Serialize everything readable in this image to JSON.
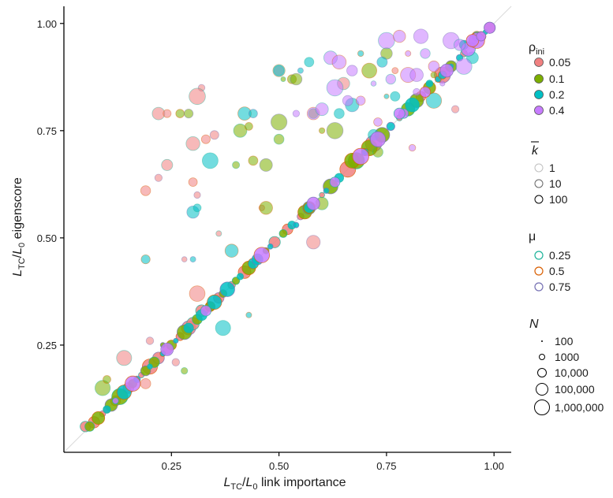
{
  "chart_data": {
    "type": "scatter",
    "xlabel": "L_TC/L_0 link importance",
    "ylabel": "L_TC/L_0 eigenscore",
    "xlim": [
      0.0,
      1.04
    ],
    "ylim": [
      0.0,
      1.04
    ],
    "x_ticks": [
      0.25,
      0.5,
      0.75,
      1.0
    ],
    "y_ticks": [
      0.25,
      0.5,
      0.75,
      1.0
    ],
    "x_tick_labels": [
      "0.25",
      "0.50",
      "0.75",
      "1.00"
    ],
    "y_tick_labels": [
      "0.25",
      "0.50",
      "0.75",
      "1.00"
    ],
    "reference_line": {
      "from": [
        0,
        0
      ],
      "to": [
        1.04,
        1.04
      ],
      "color": "#d9d9d9"
    },
    "grid": false,
    "legend_position": "right",
    "legends": {
      "rho_ini": {
        "title": "ρini",
        "items": [
          {
            "label": "0.05",
            "color": "#f08080"
          },
          {
            "label": "0.1",
            "color": "#7cae00"
          },
          {
            "label": "0.2",
            "color": "#00bfc4"
          },
          {
            "label": "0.4",
            "color": "#c77cff"
          }
        ]
      },
      "k_bar": {
        "title": "k",
        "items": [
          {
            "label": "1",
            "opacity": 0.25
          },
          {
            "label": "10",
            "opacity": 0.6
          },
          {
            "label": "100",
            "opacity": 1.0
          }
        ]
      },
      "mu": {
        "title": "μ",
        "items": [
          {
            "label": "0.25",
            "color": "#1db39a"
          },
          {
            "label": "0.5",
            "color": "#d95f02"
          },
          {
            "label": "0.75",
            "color": "#7570b3"
          }
        ]
      },
      "N": {
        "title": "N",
        "items": [
          {
            "label": "100",
            "size_level": 0
          },
          {
            "label": "1000",
            "size_level": 1
          },
          {
            "label": "10,000",
            "size_level": 2
          },
          {
            "label": "100,000",
            "size_level": 3
          },
          {
            "label": "1,000,000",
            "size_level": 4
          }
        ]
      }
    },
    "series": [
      {
        "rho": "0.05",
        "points": [
          [
            0.05,
            0.06
          ],
          [
            0.07,
            0.07
          ],
          [
            0.09,
            0.09
          ],
          [
            0.1,
            0.1
          ],
          [
            0.12,
            0.12
          ],
          [
            0.15,
            0.15
          ],
          [
            0.18,
            0.18
          ],
          [
            0.2,
            0.2
          ],
          [
            0.22,
            0.22
          ],
          [
            0.24,
            0.24
          ],
          [
            0.27,
            0.27
          ],
          [
            0.29,
            0.29
          ],
          [
            0.3,
            0.3
          ],
          [
            0.33,
            0.33
          ],
          [
            0.36,
            0.36
          ],
          [
            0.39,
            0.39
          ],
          [
            0.42,
            0.42
          ],
          [
            0.45,
            0.45
          ],
          [
            0.49,
            0.49
          ],
          [
            0.52,
            0.52
          ],
          [
            0.55,
            0.55
          ],
          [
            0.6,
            0.6
          ],
          [
            0.66,
            0.66
          ],
          [
            0.72,
            0.72
          ],
          [
            0.78,
            0.78
          ],
          [
            0.83,
            0.83
          ],
          [
            0.88,
            0.88
          ],
          [
            0.93,
            0.93
          ],
          [
            0.97,
            0.97
          ],
          [
            0.99,
            0.99
          ],
          [
            0.22,
            0.79
          ],
          [
            0.24,
            0.79
          ],
          [
            0.32,
            0.85
          ],
          [
            0.31,
            0.83
          ],
          [
            0.19,
            0.61
          ],
          [
            0.22,
            0.64
          ],
          [
            0.24,
            0.67
          ],
          [
            0.3,
            0.63
          ],
          [
            0.31,
            0.6
          ],
          [
            0.3,
            0.72
          ],
          [
            0.33,
            0.73
          ],
          [
            0.35,
            0.74
          ],
          [
            0.36,
            0.51
          ],
          [
            0.31,
            0.37
          ],
          [
            0.2,
            0.26
          ],
          [
            0.14,
            0.22
          ],
          [
            0.19,
            0.16
          ],
          [
            0.26,
            0.21
          ],
          [
            0.32,
            0.33
          ],
          [
            0.34,
            0.34
          ],
          [
            0.58,
            0.49
          ],
          [
            0.65,
            0.86
          ],
          [
            0.77,
            0.89
          ],
          [
            0.91,
            0.8
          ],
          [
            0.5,
            0.89
          ],
          [
            0.46,
            0.57
          ],
          [
            0.28,
            0.45
          ]
        ]
      },
      {
        "rho": "0.1",
        "points": [
          [
            0.06,
            0.06
          ],
          [
            0.08,
            0.08
          ],
          [
            0.11,
            0.11
          ],
          [
            0.13,
            0.13
          ],
          [
            0.16,
            0.16
          ],
          [
            0.19,
            0.19
          ],
          [
            0.21,
            0.21
          ],
          [
            0.25,
            0.25
          ],
          [
            0.28,
            0.28
          ],
          [
            0.31,
            0.31
          ],
          [
            0.34,
            0.34
          ],
          [
            0.37,
            0.37
          ],
          [
            0.4,
            0.4
          ],
          [
            0.43,
            0.43
          ],
          [
            0.47,
            0.47
          ],
          [
            0.51,
            0.51
          ],
          [
            0.56,
            0.56
          ],
          [
            0.62,
            0.62
          ],
          [
            0.68,
            0.68
          ],
          [
            0.71,
            0.71
          ],
          [
            0.74,
            0.74
          ],
          [
            0.8,
            0.8
          ],
          [
            0.85,
            0.85
          ],
          [
            0.9,
            0.9
          ],
          [
            0.95,
            0.95
          ],
          [
            0.27,
            0.79
          ],
          [
            0.29,
            0.79
          ],
          [
            0.4,
            0.67
          ],
          [
            0.44,
            0.68
          ],
          [
            0.47,
            0.67
          ],
          [
            0.41,
            0.75
          ],
          [
            0.43,
            0.76
          ],
          [
            0.5,
            0.77
          ],
          [
            0.51,
            0.87
          ],
          [
            0.53,
            0.87
          ],
          [
            0.54,
            0.87
          ],
          [
            0.58,
            0.79
          ],
          [
            0.6,
            0.75
          ],
          [
            0.63,
            0.75
          ],
          [
            0.5,
            0.73
          ],
          [
            0.71,
            0.89
          ],
          [
            0.75,
            0.93
          ],
          [
            0.73,
            0.7
          ],
          [
            0.86,
            0.88
          ],
          [
            0.82,
            0.82
          ],
          [
            0.09,
            0.15
          ],
          [
            0.1,
            0.17
          ],
          [
            0.23,
            0.25
          ],
          [
            0.28,
            0.19
          ],
          [
            0.47,
            0.57
          ],
          [
            0.57,
            0.57
          ],
          [
            0.6,
            0.58
          ],
          [
            0.67,
            0.68
          ]
        ]
      },
      {
        "rho": "0.2",
        "points": [
          [
            0.1,
            0.1
          ],
          [
            0.14,
            0.14
          ],
          [
            0.17,
            0.17
          ],
          [
            0.2,
            0.2
          ],
          [
            0.23,
            0.23
          ],
          [
            0.26,
            0.26
          ],
          [
            0.32,
            0.32
          ],
          [
            0.35,
            0.35
          ],
          [
            0.38,
            0.38
          ],
          [
            0.41,
            0.41
          ],
          [
            0.44,
            0.44
          ],
          [
            0.48,
            0.48
          ],
          [
            0.53,
            0.53
          ],
          [
            0.57,
            0.57
          ],
          [
            0.61,
            0.61
          ],
          [
            0.64,
            0.64
          ],
          [
            0.7,
            0.7
          ],
          [
            0.76,
            0.76
          ],
          [
            0.81,
            0.81
          ],
          [
            0.87,
            0.87
          ],
          [
            0.92,
            0.92
          ],
          [
            0.98,
            0.98
          ],
          [
            0.5,
            0.89
          ],
          [
            0.55,
            0.89
          ],
          [
            0.57,
            0.91
          ],
          [
            0.69,
            0.93
          ],
          [
            0.74,
            0.91
          ],
          [
            0.77,
            0.83
          ],
          [
            0.75,
            0.83
          ],
          [
            0.67,
            0.81
          ],
          [
            0.64,
            0.79
          ],
          [
            0.42,
            0.79
          ],
          [
            0.44,
            0.79
          ],
          [
            0.34,
            0.68
          ],
          [
            0.39,
            0.47
          ],
          [
            0.3,
            0.56
          ],
          [
            0.31,
            0.57
          ],
          [
            0.19,
            0.45
          ],
          [
            0.3,
            0.45
          ],
          [
            0.37,
            0.29
          ],
          [
            0.43,
            0.32
          ],
          [
            0.54,
            0.53
          ],
          [
            0.85,
            0.86
          ],
          [
            0.88,
            0.88
          ],
          [
            0.9,
            0.9
          ],
          [
            0.95,
            0.92
          ],
          [
            0.96,
            0.97
          ],
          [
            0.93,
            0.95
          ],
          [
            0.72,
            0.74
          ],
          [
            0.86,
            0.82
          ],
          [
            0.45,
            0.45
          ],
          [
            0.29,
            0.29
          ]
        ]
      },
      {
        "rho": "0.4",
        "points": [
          [
            0.12,
            0.12
          ],
          [
            0.16,
            0.16
          ],
          [
            0.24,
            0.24
          ],
          [
            0.33,
            0.33
          ],
          [
            0.46,
            0.46
          ],
          [
            0.58,
            0.58
          ],
          [
            0.63,
            0.63
          ],
          [
            0.69,
            0.69
          ],
          [
            0.73,
            0.73
          ],
          [
            0.79,
            0.79
          ],
          [
            0.84,
            0.84
          ],
          [
            0.89,
            0.89
          ],
          [
            0.94,
            0.94
          ],
          [
            0.96,
            0.96
          ],
          [
            0.99,
            0.99
          ],
          [
            0.75,
            0.96
          ],
          [
            0.78,
            0.97
          ],
          [
            0.83,
            0.97
          ],
          [
            0.84,
            0.93
          ],
          [
            0.8,
            0.93
          ],
          [
            0.9,
            0.96
          ],
          [
            0.92,
            0.95
          ],
          [
            0.95,
            0.96
          ],
          [
            0.97,
            0.97
          ],
          [
            0.62,
            0.92
          ],
          [
            0.64,
            0.91
          ],
          [
            0.67,
            0.89
          ],
          [
            0.76,
            0.87
          ],
          [
            0.8,
            0.88
          ],
          [
            0.82,
            0.88
          ],
          [
            0.72,
            0.86
          ],
          [
            0.69,
            0.82
          ],
          [
            0.66,
            0.82
          ],
          [
            0.63,
            0.85
          ],
          [
            0.58,
            0.79
          ],
          [
            0.54,
            0.79
          ],
          [
            0.6,
            0.8
          ],
          [
            0.81,
            0.71
          ],
          [
            0.82,
            0.84
          ],
          [
            0.78,
            0.79
          ],
          [
            0.73,
            0.77
          ],
          [
            0.88,
            0.86
          ],
          [
            0.93,
            0.9
          ],
          [
            0.86,
            0.9
          ]
        ]
      }
    ]
  }
}
